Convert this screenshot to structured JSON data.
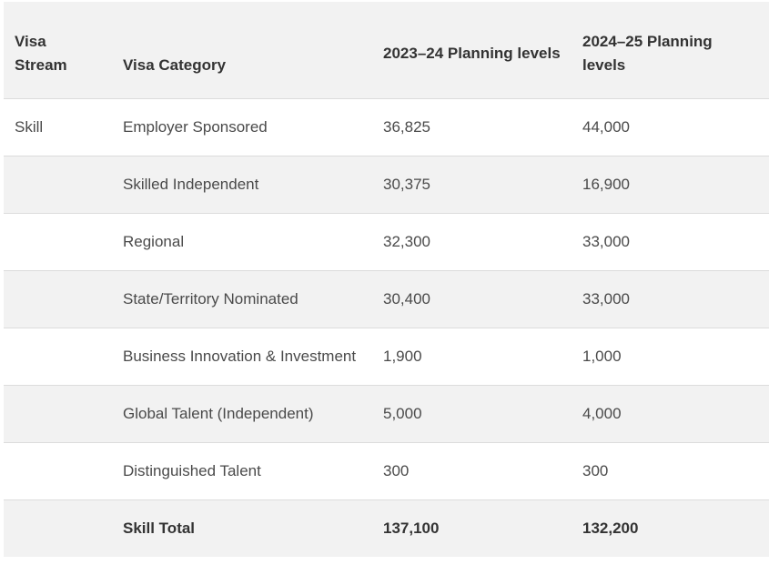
{
  "table": {
    "headers": {
      "stream": "Visa Stream",
      "category": "Visa Category",
      "plan_2023_24": "2023–24 Planning levels",
      "plan_2024_25": "2024–25 Planning levels"
    },
    "rows": [
      {
        "stream": "Skill",
        "category": "Employer Sponsored",
        "plan_2023_24": "36,825",
        "plan_2024_25": "44,000"
      },
      {
        "stream": "",
        "category": "Skilled Independent",
        "plan_2023_24": "30,375",
        "plan_2024_25": "16,900"
      },
      {
        "stream": "",
        "category": "Regional",
        "plan_2023_24": "32,300",
        "plan_2024_25": "33,000"
      },
      {
        "stream": "",
        "category": "State/Territory Nominated",
        "plan_2023_24": "30,400",
        "plan_2024_25": "33,000"
      },
      {
        "stream": "",
        "category": "Business Innovation & Investment",
        "plan_2023_24": "1,900",
        "plan_2024_25": "1,000"
      },
      {
        "stream": "",
        "category": "Global Talent (Independent)",
        "plan_2023_24": "5,000",
        "plan_2024_25": "4,000"
      },
      {
        "stream": "",
        "category": "Distinguished Talent",
        "plan_2023_24": "300",
        "plan_2024_25": "300"
      }
    ],
    "total": {
      "stream": "",
      "category": "Skill Total",
      "plan_2023_24": "137,100",
      "plan_2024_25": "132,200"
    }
  }
}
